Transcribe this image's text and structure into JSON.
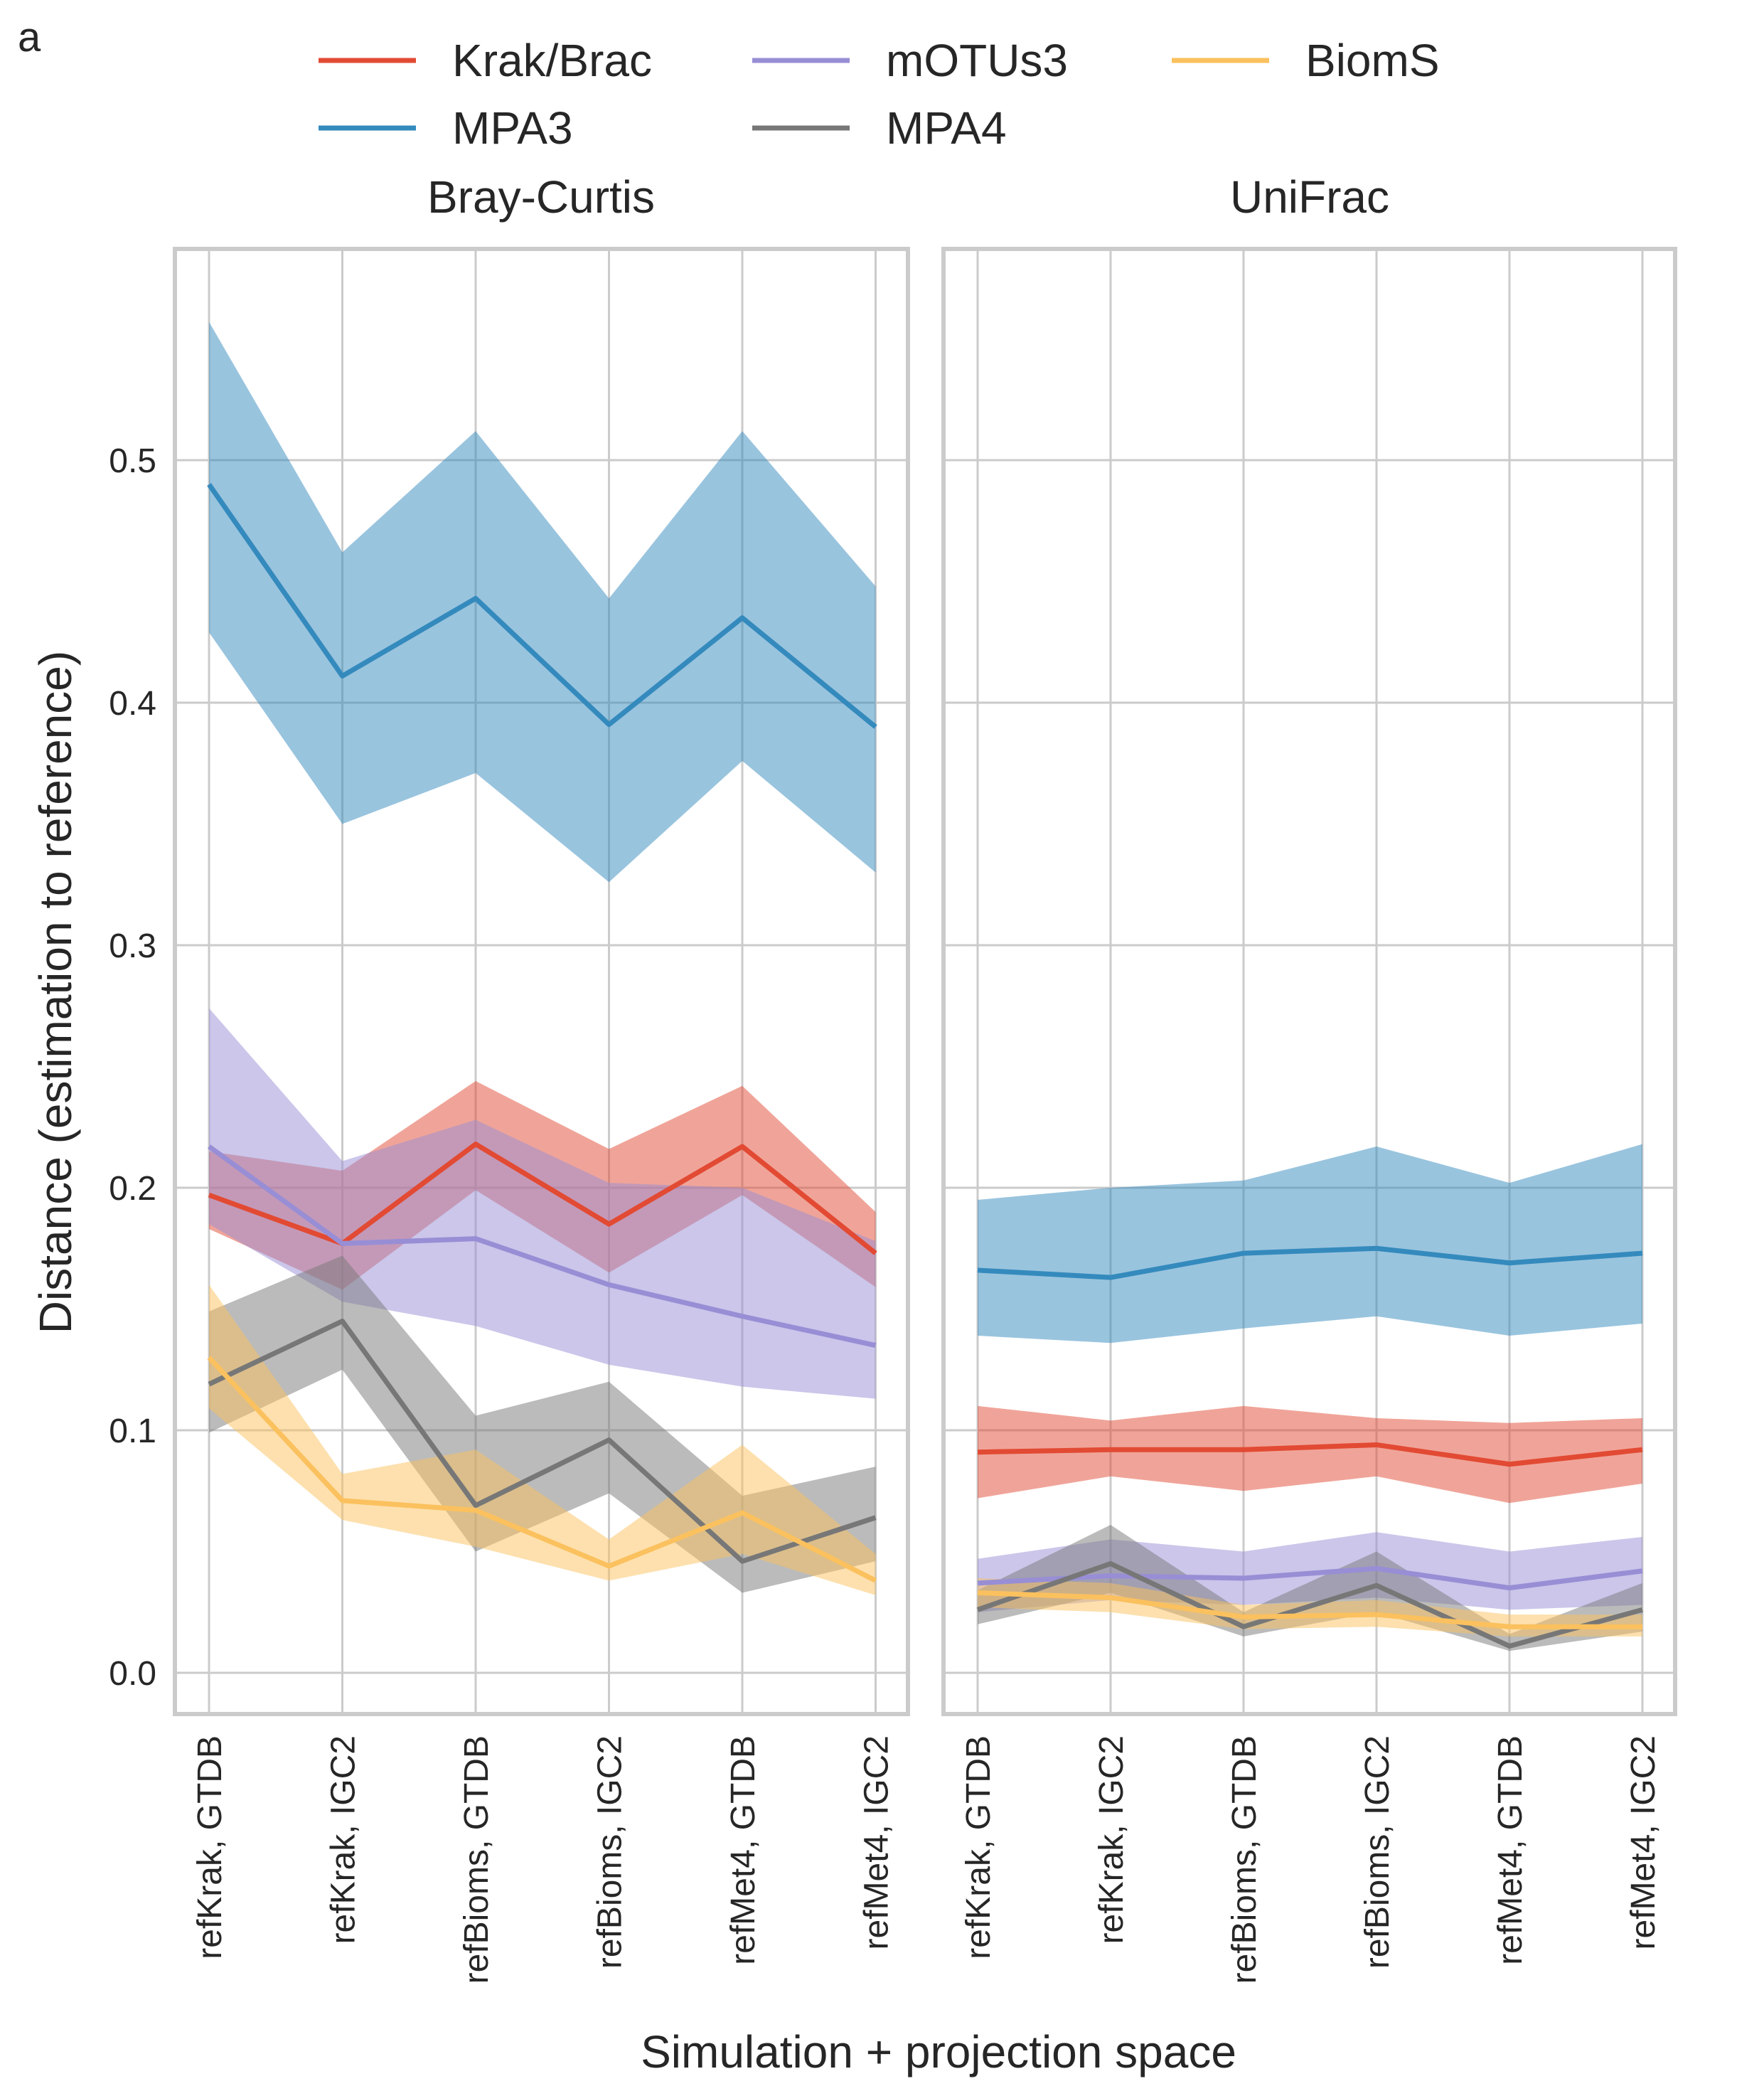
{
  "panel_label": "a",
  "chart_data": {
    "type": "line",
    "xlabel": "Simulation + projection space",
    "ylabel": "Distance (estimation to reference)",
    "categories": [
      "refKrak, GTDB",
      "refKrak, IGC2",
      "refBioms, GTDB",
      "refBioms, IGC2",
      "refMet4, GTDB",
      "refMet4, IGC2"
    ],
    "ylim": [
      -0.018,
      0.585
    ],
    "yticks": [
      "0.0",
      "0.1",
      "0.2",
      "0.3",
      "0.4",
      "0.5"
    ],
    "ytick_values": [
      0.0,
      0.1,
      0.2,
      0.3,
      0.4,
      0.5
    ],
    "grid": true,
    "legend": {
      "placement": "top",
      "entries": [
        {
          "name": "Krak/Brac",
          "color": "#e24a33"
        },
        {
          "name": "MPA3",
          "color": "#348abd"
        },
        {
          "name": "mOTUs3",
          "color": "#988ed5"
        },
        {
          "name": "MPA4",
          "color": "#777777"
        },
        {
          "name": "BiomS",
          "color": "#fbc15e"
        }
      ]
    },
    "panels": [
      {
        "title": "Bray-Curtis",
        "series": [
          {
            "name": "MPA3",
            "color": "#348abd",
            "values": [
              0.49,
              0.411,
              0.443,
              0.391,
              0.435,
              0.39
            ],
            "lower": [
              0.429,
              0.35,
              0.371,
              0.326,
              0.376,
              0.33
            ],
            "upper": [
              0.557,
              0.462,
              0.512,
              0.443,
              0.512,
              0.448
            ]
          },
          {
            "name": "Krak/Brac",
            "color": "#e24a33",
            "values": [
              0.197,
              0.177,
              0.218,
              0.185,
              0.217,
              0.173
            ],
            "lower": [
              0.183,
              0.158,
              0.199,
              0.165,
              0.197,
              0.159
            ],
            "upper": [
              0.215,
              0.207,
              0.244,
              0.216,
              0.242,
              0.19
            ]
          },
          {
            "name": "mOTUs3",
            "color": "#988ed5",
            "values": [
              0.217,
              0.177,
              0.179,
              0.16,
              0.147,
              0.135
            ],
            "lower": [
              0.185,
              0.153,
              0.143,
              0.127,
              0.118,
              0.113
            ],
            "upper": [
              0.274,
              0.211,
              0.228,
              0.202,
              0.2,
              0.178
            ]
          },
          {
            "name": "MPA4",
            "color": "#777777",
            "values": [
              0.119,
              0.145,
              0.069,
              0.096,
              0.046,
              0.064
            ],
            "lower": [
              0.099,
              0.125,
              0.05,
              0.074,
              0.033,
              0.046
            ],
            "upper": [
              0.149,
              0.172,
              0.106,
              0.12,
              0.073,
              0.085
            ]
          },
          {
            "name": "BiomS",
            "color": "#fbc15e",
            "values": [
              0.13,
              0.071,
              0.067,
              0.044,
              0.066,
              0.038
            ],
            "lower": [
              0.109,
              0.063,
              0.052,
              0.038,
              0.049,
              0.032
            ],
            "upper": [
              0.16,
              0.082,
              0.092,
              0.055,
              0.094,
              0.049
            ]
          }
        ]
      },
      {
        "title": "UniFrac",
        "series": [
          {
            "name": "MPA3",
            "color": "#348abd",
            "values": [
              0.166,
              0.163,
              0.173,
              0.175,
              0.169,
              0.173
            ],
            "lower": [
              0.139,
              0.136,
              0.142,
              0.147,
              0.139,
              0.144
            ],
            "upper": [
              0.195,
              0.2,
              0.203,
              0.217,
              0.202,
              0.218
            ]
          },
          {
            "name": "Krak/Brac",
            "color": "#e24a33",
            "values": [
              0.091,
              0.092,
              0.092,
              0.094,
              0.086,
              0.092
            ],
            "lower": [
              0.072,
              0.081,
              0.075,
              0.081,
              0.07,
              0.078
            ],
            "upper": [
              0.11,
              0.104,
              0.11,
              0.105,
              0.103,
              0.105
            ]
          },
          {
            "name": "mOTUs3",
            "color": "#988ed5",
            "values": [
              0.037,
              0.04,
              0.039,
              0.043,
              0.035,
              0.042
            ],
            "lower": [
              0.025,
              0.03,
              0.028,
              0.031,
              0.026,
              0.028
            ],
            "upper": [
              0.047,
              0.055,
              0.05,
              0.058,
              0.05,
              0.056
            ]
          },
          {
            "name": "MPA4",
            "color": "#777777",
            "values": [
              0.026,
              0.045,
              0.019,
              0.036,
              0.011,
              0.026
            ],
            "lower": [
              0.02,
              0.033,
              0.015,
              0.025,
              0.009,
              0.017
            ],
            "upper": [
              0.034,
              0.061,
              0.025,
              0.05,
              0.016,
              0.037
            ]
          },
          {
            "name": "BiomS",
            "color": "#fbc15e",
            "values": [
              0.033,
              0.031,
              0.023,
              0.024,
              0.019,
              0.019
            ],
            "lower": [
              0.027,
              0.025,
              0.018,
              0.019,
              0.015,
              0.015
            ],
            "upper": [
              0.039,
              0.037,
              0.028,
              0.03,
              0.024,
              0.024
            ]
          }
        ]
      }
    ]
  }
}
